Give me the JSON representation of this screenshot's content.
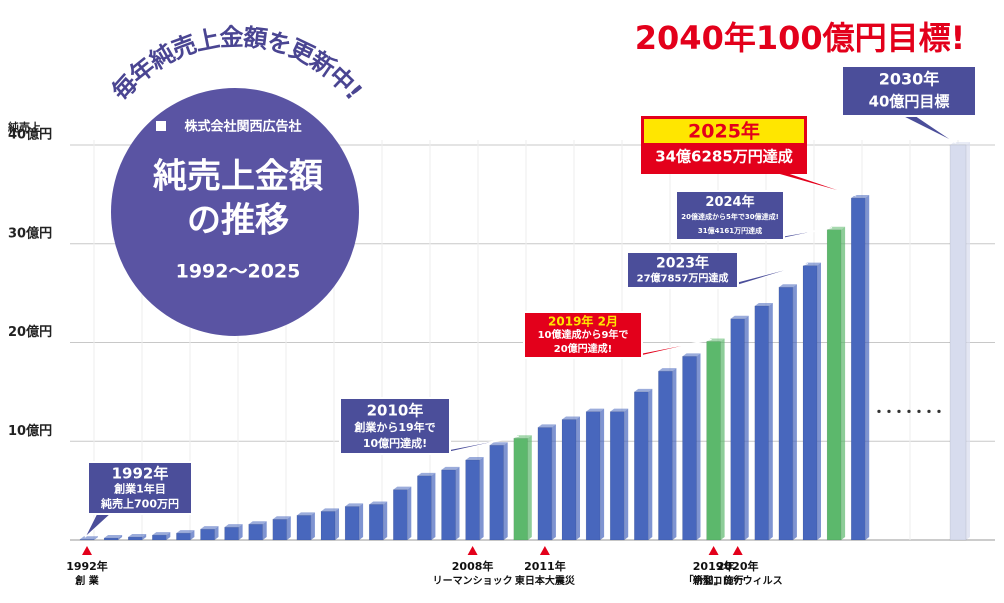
{
  "chart_data": {
    "type": "bar",
    "headline": "2040年100億円目標!",
    "badge": {
      "arc_text": "毎年純売上金額を更新中!",
      "company": "株式会社関西広告社",
      "title_lines": [
        "純売上金額",
        "の推移"
      ],
      "period": "1992～2025"
    },
    "y_axis_label": "純売上",
    "categories": [
      "1992年",
      null,
      null,
      null,
      null,
      null,
      null,
      null,
      null,
      null,
      null,
      null,
      null,
      null,
      null,
      null,
      "2008年",
      null,
      null,
      "2011年",
      null,
      null,
      null,
      null,
      null,
      null,
      "2019年",
      "2020年",
      null,
      null,
      null,
      null,
      null,
      "2030年"
    ],
    "category_notes": [
      "創 業",
      null,
      null,
      null,
      null,
      null,
      null,
      null,
      null,
      null,
      null,
      null,
      null,
      null,
      null,
      null,
      "リーマンショック",
      null,
      null,
      "東日本大震災",
      null,
      null,
      null,
      null,
      null,
      null,
      "「令和」施行",
      "新型コロナウィルス",
      null,
      null,
      null,
      null,
      null,
      null
    ],
    "values": [
      0.07,
      0.2,
      0.3,
      0.5,
      0.7,
      1.1,
      1.3,
      1.6,
      2.1,
      2.5,
      2.9,
      3.4,
      3.6,
      5.1,
      6.5,
      7.1,
      8.1,
      9.6,
      10.3,
      11.4,
      12.2,
      13.0,
      13.0,
      15.0,
      17.1,
      18.6,
      20.1,
      22.4,
      23.7,
      25.6,
      27.7857,
      31.4161,
      34.6285,
      40
    ],
    "colors": [
      "#4867bd",
      "#4867bd",
      "#4867bd",
      "#4867bd",
      "#4867bd",
      "#4867bd",
      "#4867bd",
      "#4867bd",
      "#4867bd",
      "#4867bd",
      "#4867bd",
      "#4867bd",
      "#4867bd",
      "#4867bd",
      "#4867bd",
      "#4867bd",
      "#4867bd",
      "#4867bd",
      "#5cb86c",
      "#4867bd",
      "#4867bd",
      "#4867bd",
      "#4867bd",
      "#4867bd",
      "#4867bd",
      "#4867bd",
      "#5cb86c",
      "#4867bd",
      "#4867bd",
      "#4867bd",
      "#4867bd",
      "#5cb86c",
      "#4867bd",
      "#d7dcee"
    ],
    "ylim": [
      0,
      40
    ],
    "yticks": [
      {
        "value": 10,
        "label": "10億円"
      },
      {
        "value": 20,
        "label": "20億円"
      },
      {
        "value": 30,
        "label": "30億円"
      },
      {
        "value": 40,
        "label": "40億円"
      }
    ],
    "grid": true,
    "callouts": [
      {
        "title": "1992年",
        "lines": [
          "創業1年目",
          "純売上700万円"
        ]
      },
      {
        "title": "2010年",
        "lines": [
          "創業から19年で",
          "10億円達成!"
        ]
      },
      {
        "title": "2019年 2月",
        "lines": [
          "10億達成から9年で",
          "20億円達成!"
        ]
      },
      {
        "title": "2023年",
        "lines": [
          "27億7857万円達成"
        ]
      },
      {
        "title": "2024年",
        "lines": [
          "20億達成から5年で30億達成!",
          "31億4161万円達成"
        ]
      },
      {
        "title": "2025年",
        "lines": [
          "34億6285万円達成"
        ]
      },
      {
        "title": "2030年",
        "lines": [
          "40億円目標"
        ]
      }
    ]
  }
}
